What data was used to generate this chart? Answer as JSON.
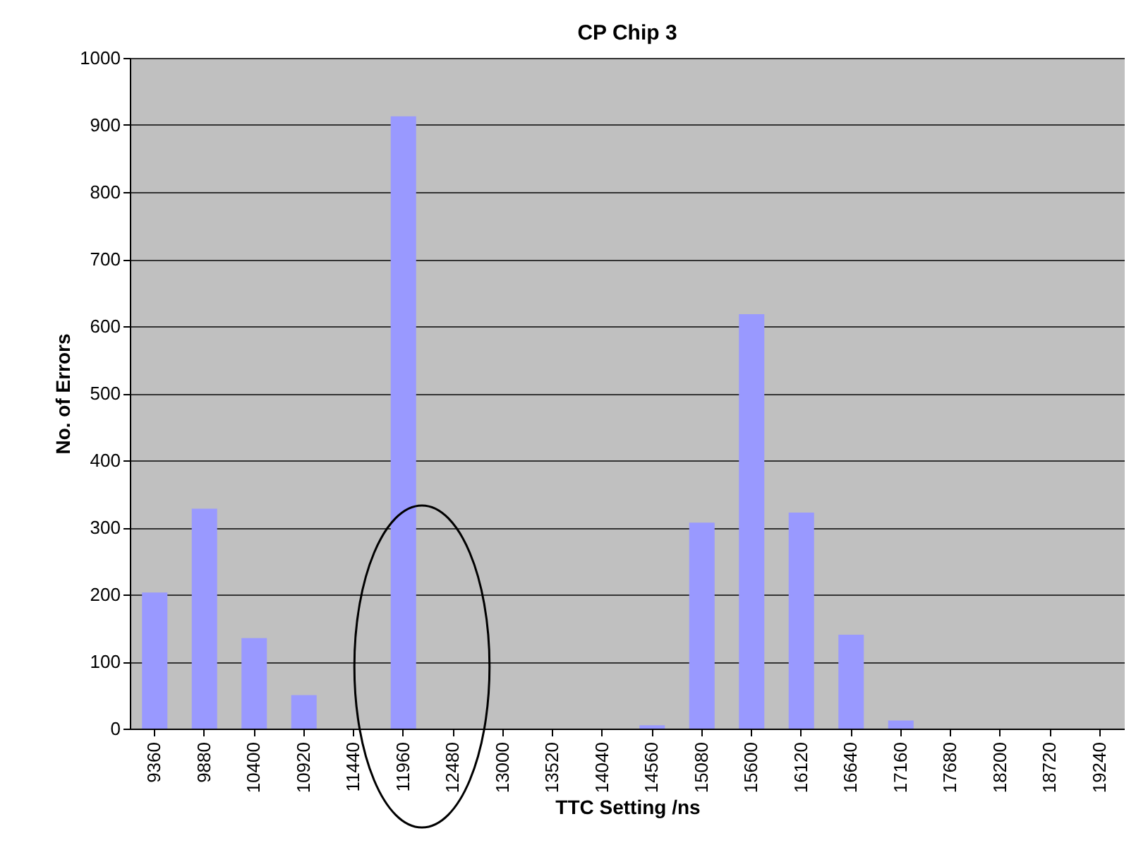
{
  "chart_data": {
    "type": "bar",
    "title": "CP Chip 3",
    "xlabel": "TTC Setting /ns",
    "ylabel": "No. of Errors",
    "categories": [
      "9360",
      "9880",
      "10400",
      "10920",
      "11440",
      "11960",
      "12480",
      "13000",
      "13520",
      "14040",
      "14560",
      "15080",
      "15600",
      "16120",
      "16640",
      "17160",
      "17680",
      "18200",
      "18720",
      "19240"
    ],
    "series": [
      {
        "color": "#9999ff",
        "values": [
          203,
          328,
          135,
          50,
          0,
          913,
          0,
          0,
          0,
          0,
          5,
          307,
          618,
          322,
          140,
          12,
          0,
          0,
          0,
          0
        ]
      }
    ],
    "ylim": [
      0,
      1000
    ],
    "yticks": [
      0,
      100,
      200,
      300,
      400,
      500,
      600,
      700,
      800,
      900,
      1000
    ],
    "grid": "y"
  }
}
